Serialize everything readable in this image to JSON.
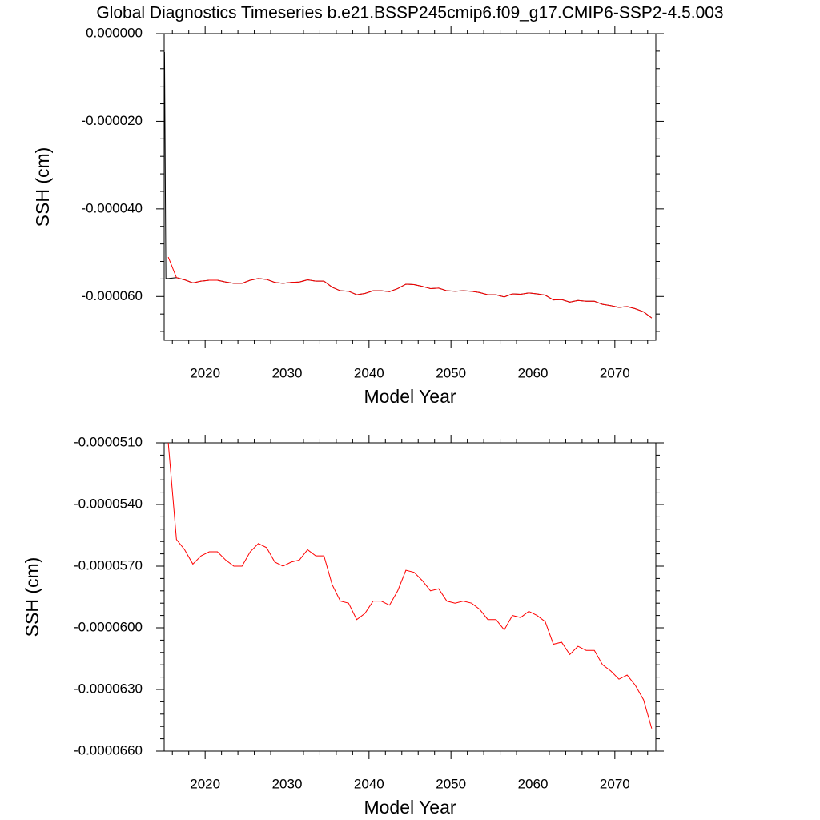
{
  "chart_data": [
    {
      "type": "line",
      "title": "Global Diagnostics Timeseries b.e21.BSSP245cmip6.f09_g17.CMIP6-SSP2-4.5.003",
      "xlabel": "Model Year",
      "ylabel": "SSH (cm)",
      "xlim": [
        2015,
        2075
      ],
      "xticks": [
        2020,
        2030,
        2040,
        2050,
        2060,
        2070
      ],
      "ylim": [
        -7e-05,
        0
      ],
      "yticks": [
        {
          "value": 0,
          "label": "0.000000"
        },
        {
          "value": -2e-05,
          "label": "-0.000020"
        },
        {
          "value": -4e-05,
          "label": "-0.000040"
        },
        {
          "value": -6e-05,
          "label": "-0.000060"
        }
      ],
      "series": [
        {
          "color": "#000000",
          "x": [
            2015.04,
            2015.21,
            2015.5,
            2016.5,
            2017.5,
            2018.5,
            2019.5,
            2020.5,
            2021.5,
            2022.5,
            2023.5,
            2024.5,
            2025.5,
            2026.5,
            2027.5,
            2028.5,
            2029.5,
            2030.5,
            2031.5,
            2032.5,
            2033.5,
            2034.5,
            2035.5,
            2036.5,
            2037.5,
            2038.5,
            2039.5,
            2040.5,
            2041.5,
            2042.5,
            2043.5,
            2044.5,
            2045.5,
            2046.5,
            2047.5,
            2048.5,
            2049.5,
            2050.5,
            2051.5,
            2052.5,
            2053.5,
            2054.5,
            2055.5,
            2056.5,
            2057.5,
            2058.5,
            2059.5,
            2060.5,
            2061.5,
            2062.5,
            2063.5,
            2064.5,
            2065.5,
            2066.5,
            2067.5,
            2068.5,
            2069.5,
            2070.5,
            2071.5,
            2072.5,
            2073.5,
            2074.5
          ],
          "values": [
            -4.2e-06,
            -5.59e-05,
            -5.59e-05,
            -5.57e-05,
            -5.62e-05,
            -5.69e-05,
            -5.65e-05,
            -5.63e-05,
            -5.63e-05,
            -5.67e-05,
            -5.7e-05,
            -5.7e-05,
            -5.63e-05,
            -5.59e-05,
            -5.61e-05,
            -5.68e-05,
            -5.7e-05,
            -5.68e-05,
            -5.67e-05,
            -5.62e-05,
            -5.65e-05,
            -5.65e-05,
            -5.79e-05,
            -5.87e-05,
            -5.88e-05,
            -5.96e-05,
            -5.93e-05,
            -5.87e-05,
            -5.87e-05,
            -5.89e-05,
            -5.82e-05,
            -5.72e-05,
            -5.73e-05,
            -5.77e-05,
            -5.82e-05,
            -5.81e-05,
            -5.87e-05,
            -5.88e-05,
            -5.87e-05,
            -5.88e-05,
            -5.91e-05,
            -5.96e-05,
            -5.96e-05,
            -6.01e-05,
            -5.94e-05,
            -5.95e-05,
            -5.92e-05,
            -5.94e-05,
            -5.97e-05,
            -6.08e-05,
            -6.07e-05,
            -6.13e-05,
            -6.09e-05,
            -6.11e-05,
            -6.11e-05,
            -6.18e-05,
            -6.21e-05,
            -6.25e-05,
            -6.23e-05,
            -6.28e-05,
            -6.35e-05,
            -6.49e-05
          ]
        },
        {
          "color": "#ff0000",
          "x": [
            2015.5,
            2016.5,
            2017.5,
            2018.5,
            2019.5,
            2020.5,
            2021.5,
            2022.5,
            2023.5,
            2024.5,
            2025.5,
            2026.5,
            2027.5,
            2028.5,
            2029.5,
            2030.5,
            2031.5,
            2032.5,
            2033.5,
            2034.5,
            2035.5,
            2036.5,
            2037.5,
            2038.5,
            2039.5,
            2040.5,
            2041.5,
            2042.5,
            2043.5,
            2044.5,
            2045.5,
            2046.5,
            2047.5,
            2048.5,
            2049.5,
            2050.5,
            2051.5,
            2052.5,
            2053.5,
            2054.5,
            2055.5,
            2056.5,
            2057.5,
            2058.5,
            2059.5,
            2060.5,
            2061.5,
            2062.5,
            2063.5,
            2064.5,
            2065.5,
            2066.5,
            2067.5,
            2068.5,
            2069.5,
            2070.5,
            2071.5,
            2072.5,
            2073.5,
            2074.5
          ],
          "values": [
            -5.1e-05,
            -5.57e-05,
            -5.62e-05,
            -5.69e-05,
            -5.65e-05,
            -5.63e-05,
            -5.63e-05,
            -5.67e-05,
            -5.7e-05,
            -5.7e-05,
            -5.63e-05,
            -5.59e-05,
            -5.61e-05,
            -5.68e-05,
            -5.7e-05,
            -5.68e-05,
            -5.67e-05,
            -5.62e-05,
            -5.65e-05,
            -5.65e-05,
            -5.79e-05,
            -5.87e-05,
            -5.88e-05,
            -5.96e-05,
            -5.93e-05,
            -5.87e-05,
            -5.87e-05,
            -5.89e-05,
            -5.82e-05,
            -5.72e-05,
            -5.73e-05,
            -5.77e-05,
            -5.82e-05,
            -5.81e-05,
            -5.87e-05,
            -5.88e-05,
            -5.87e-05,
            -5.88e-05,
            -5.91e-05,
            -5.96e-05,
            -5.96e-05,
            -6.01e-05,
            -5.94e-05,
            -5.95e-05,
            -5.92e-05,
            -5.94e-05,
            -5.97e-05,
            -6.08e-05,
            -6.07e-05,
            -6.13e-05,
            -6.09e-05,
            -6.11e-05,
            -6.11e-05,
            -6.18e-05,
            -6.21e-05,
            -6.25e-05,
            -6.23e-05,
            -6.28e-05,
            -6.35e-05,
            -6.49e-05
          ]
        }
      ]
    },
    {
      "type": "line",
      "xlabel": "Model Year",
      "ylabel": "SSH (cm)",
      "xlim": [
        2015,
        2075
      ],
      "xticks": [
        2020,
        2030,
        2040,
        2050,
        2060,
        2070
      ],
      "ylim": [
        -6.6e-05,
        -5.1e-05
      ],
      "yticks": [
        {
          "value": -5.1e-05,
          "label": "-0.0000510"
        },
        {
          "value": -5.4e-05,
          "label": "-0.0000540"
        },
        {
          "value": -5.7e-05,
          "label": "-0.0000570"
        },
        {
          "value": -6e-05,
          "label": "-0.0000600"
        },
        {
          "value": -6.3e-05,
          "label": "-0.0000630"
        },
        {
          "value": -6.6e-05,
          "label": "-0.0000660"
        }
      ],
      "series": [
        {
          "color": "#ff0000",
          "x": [
            2015.5,
            2016.5,
            2017.5,
            2018.5,
            2019.5,
            2020.5,
            2021.5,
            2022.5,
            2023.5,
            2024.5,
            2025.5,
            2026.5,
            2027.5,
            2028.5,
            2029.5,
            2030.5,
            2031.5,
            2032.5,
            2033.5,
            2034.5,
            2035.5,
            2036.5,
            2037.5,
            2038.5,
            2039.5,
            2040.5,
            2041.5,
            2042.5,
            2043.5,
            2044.5,
            2045.5,
            2046.5,
            2047.5,
            2048.5,
            2049.5,
            2050.5,
            2051.5,
            2052.5,
            2053.5,
            2054.5,
            2055.5,
            2056.5,
            2057.5,
            2058.5,
            2059.5,
            2060.5,
            2061.5,
            2062.5,
            2063.5,
            2064.5,
            2065.5,
            2066.5,
            2067.5,
            2068.5,
            2069.5,
            2070.5,
            2071.5,
            2072.5,
            2073.5,
            2074.5
          ],
          "values": [
            -5.1e-05,
            -5.57e-05,
            -5.62e-05,
            -5.69e-05,
            -5.65e-05,
            -5.63e-05,
            -5.63e-05,
            -5.67e-05,
            -5.7e-05,
            -5.7e-05,
            -5.63e-05,
            -5.59e-05,
            -5.61e-05,
            -5.68e-05,
            -5.7e-05,
            -5.68e-05,
            -5.67e-05,
            -5.62e-05,
            -5.65e-05,
            -5.65e-05,
            -5.79e-05,
            -5.87e-05,
            -5.88e-05,
            -5.96e-05,
            -5.93e-05,
            -5.87e-05,
            -5.87e-05,
            -5.89e-05,
            -5.82e-05,
            -5.72e-05,
            -5.73e-05,
            -5.77e-05,
            -5.82e-05,
            -5.81e-05,
            -5.87e-05,
            -5.88e-05,
            -5.87e-05,
            -5.88e-05,
            -5.91e-05,
            -5.96e-05,
            -5.96e-05,
            -6.01e-05,
            -5.94e-05,
            -5.95e-05,
            -5.92e-05,
            -5.94e-05,
            -5.97e-05,
            -6.08e-05,
            -6.07e-05,
            -6.13e-05,
            -6.09e-05,
            -6.11e-05,
            -6.11e-05,
            -6.18e-05,
            -6.21e-05,
            -6.25e-05,
            -6.23e-05,
            -6.28e-05,
            -6.35e-05,
            -6.49e-05
          ]
        }
      ]
    }
  ]
}
